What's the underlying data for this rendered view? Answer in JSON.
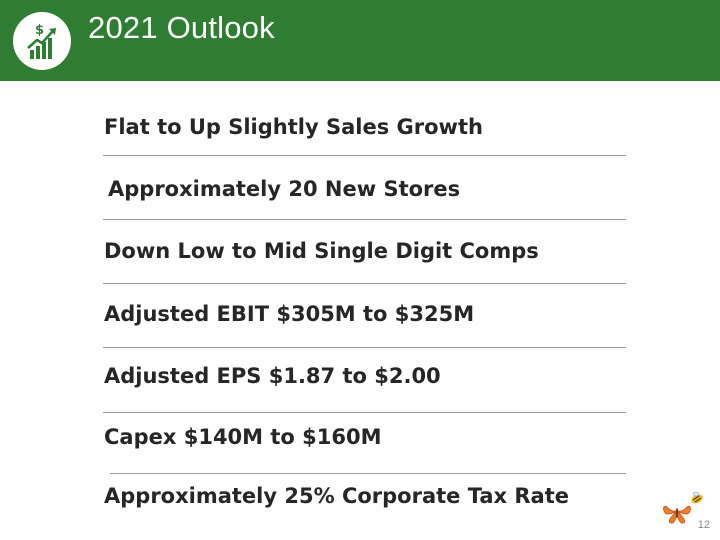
{
  "header": {
    "title": "2021 Outlook",
    "color": "#2f7d32",
    "logo_icon": "money-growth-chart-icon"
  },
  "outlook_items": [
    "Flat to Up Slightly Sales Growth",
    "Approximately 20 New Stores",
    "Down Low to Mid Single Digit Comps",
    "Adjusted EBIT $305M to $325M",
    "Adjusted EPS $1.87 to $2.00",
    "Capex $140M to $160M",
    "Approximately 25% Corporate Tax Rate"
  ],
  "footer": {
    "page_number": "12",
    "corner_icon": "butterfly-bee-logo-icon"
  }
}
